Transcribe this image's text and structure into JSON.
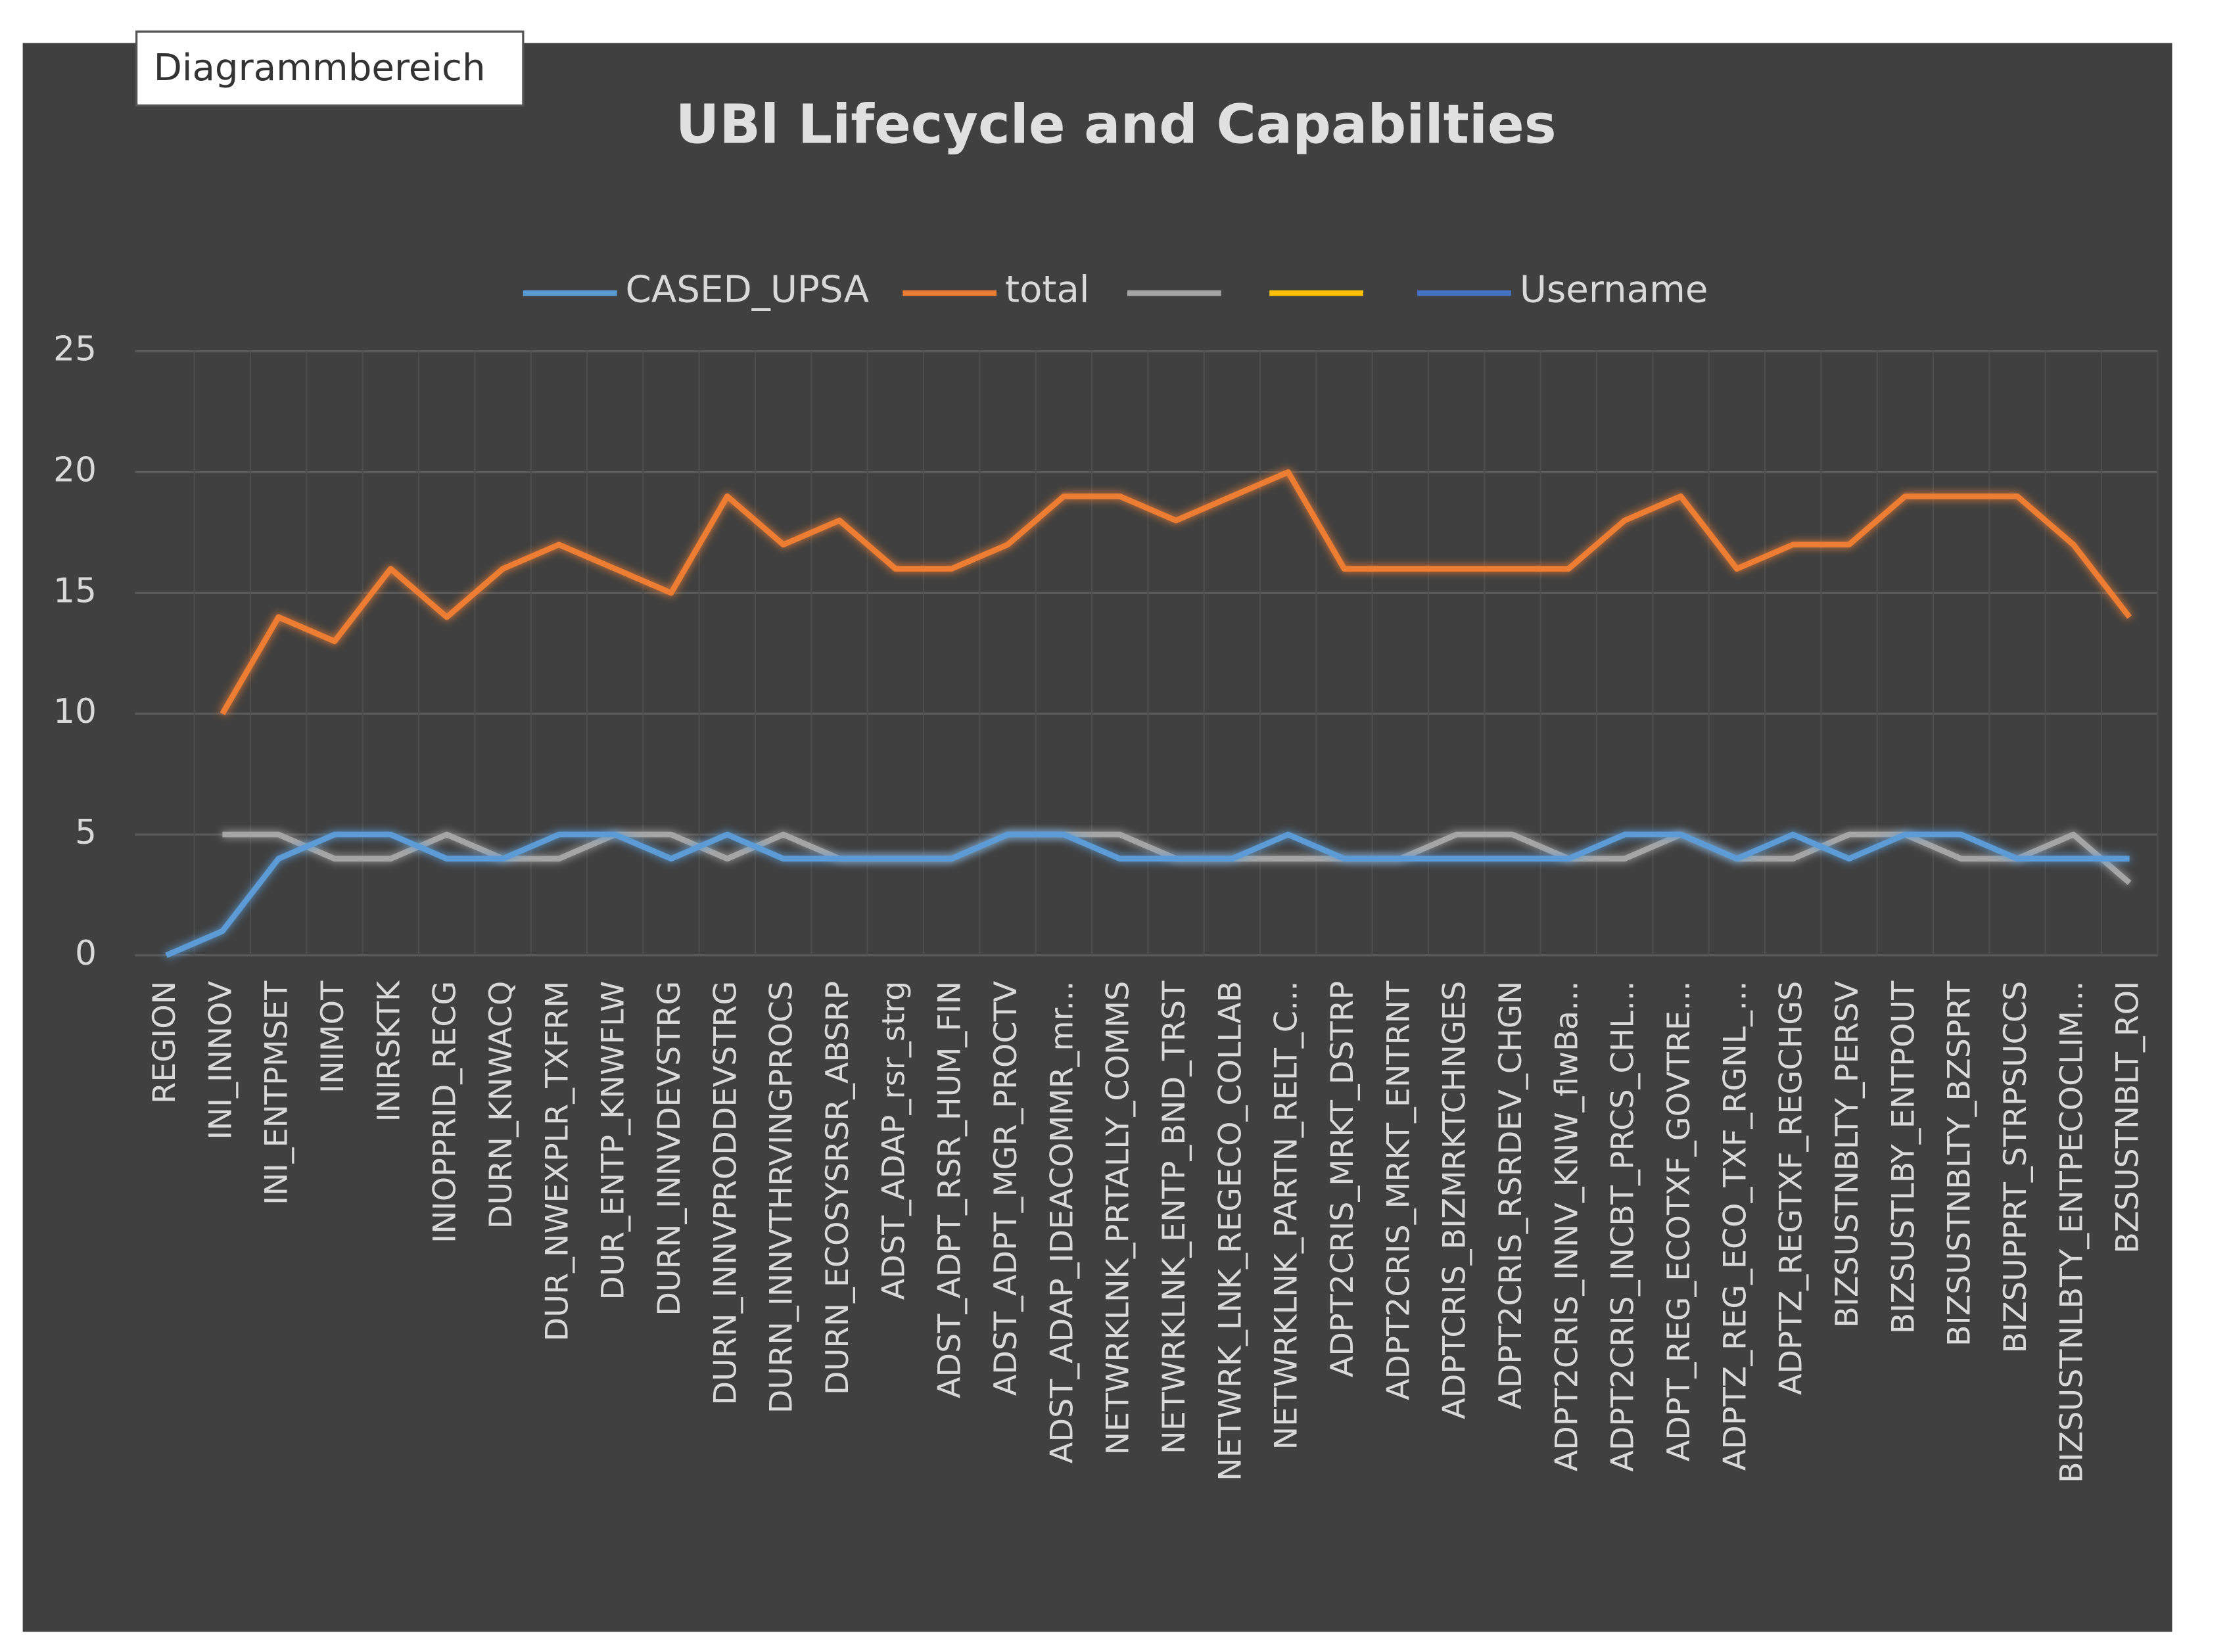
{
  "tooltip": "Diagrammbereich",
  "chart_data": {
    "type": "line",
    "title": "UBl Lifecycle and Capabilties",
    "categories": [
      "REGION",
      "INI_INNOV",
      "INI_ENTPMSET",
      "INIMOT",
      "INIRSKTK",
      "INIOPPRID_RECG",
      "DURN_KNWACQ",
      "DUR_NWEXPLR_TXFRM",
      "DUR_ENTP_KNWFLW",
      "DURN_INNVDEVSTRG",
      "DURN_INNVPRODDEVSTRG",
      "DURN_INNVTHRVINGPROCS",
      "DURN_ECOSYSRSR_ABSRP",
      "ADST_ADAP_rsr_strg",
      "ADST_ADPT_RSR_HUM_FIN",
      "ADST_ADPT_MGR_PROCTV",
      "ADST_ADAP_IDEACOMMR_mr...",
      "NETWRKLNK_PRTALLY_COMMS",
      "NETWRKLNK_ENTP_BND_TRST",
      "NETWRK_LNK_REGECO_COLLAB",
      "NETWRKLNK_PARTN_RELT_C...",
      "ADPT2CRIS_MRKT_DSTRP",
      "ADPT2CRIS_MRKT_ENTRNT",
      "ADPTCRIS_BIZMRKTCHNGES",
      "ADPT2CRIS_RSRDEV_CHGN",
      "ADPT2CRIS_INNV_KNW_flwBa...",
      "ADPT2CRIS_INCBT_PRCS_CHL...",
      "ADPT_REG_ECOTXF_GOVTRE...",
      "ADPTZ_REG_ECO_TXF_RGNL_...",
      "ADPTZ_REGTXF_REGCHGS",
      "BIZSUSTNBLTY_PERSV",
      "BIZSUSTLBY_ENTPOUT",
      "BIZSUSTNBLTY_BZSPRT",
      "BIZSUPPRT_STRPSUCCS",
      "BIZSUSTNLBTY_ENTPECOCLIM...",
      "BZSUSTNBLT_ROI"
    ],
    "series": [
      {
        "name": "CASED_UPSA",
        "color": "#5b9bd5",
        "values": [
          0,
          1,
          4,
          5,
          5,
          4,
          4,
          5,
          5,
          4,
          5,
          4,
          4,
          4,
          4,
          5,
          5,
          4,
          4,
          4,
          5,
          4,
          4,
          4,
          4,
          4,
          5,
          5,
          4,
          5,
          4,
          5,
          5,
          4,
          4,
          4
        ]
      },
      {
        "name": "total",
        "color": "#ed7d31",
        "values": [
          null,
          10,
          14,
          13,
          16,
          14,
          16,
          17,
          16,
          15,
          19,
          17,
          18,
          16,
          16,
          17,
          19,
          19,
          18,
          19,
          20,
          16,
          16,
          16,
          16,
          16,
          18,
          19,
          16,
          17,
          17,
          19,
          19,
          19,
          17,
          14
        ]
      },
      {
        "color": "#a5a5a5",
        "values": [
          null,
          5,
          5,
          4,
          4,
          5,
          4,
          4,
          5,
          5,
          4,
          5,
          4,
          4,
          4,
          5,
          5,
          5,
          4,
          4,
          4,
          4,
          4,
          5,
          5,
          4,
          4,
          5,
          4,
          4,
          5,
          5,
          4,
          4,
          5,
          3
        ]
      },
      {
        "color": "#ffc000",
        "values": [
          null,
          null,
          null,
          null,
          null,
          null,
          null,
          null,
          null,
          null,
          null,
          null,
          null,
          null,
          null,
          null,
          null,
          null,
          null,
          null,
          null,
          null,
          null,
          null,
          null,
          null,
          null,
          null,
          null,
          null,
          null,
          null,
          null,
          null,
          null,
          null
        ]
      },
      {
        "name": "Username",
        "color": "#4472c4",
        "values": [
          null,
          0,
          0,
          0,
          0,
          0,
          0,
          0,
          0,
          0,
          0,
          0,
          0,
          0,
          0,
          0,
          0,
          0,
          0,
          0,
          0,
          0,
          0,
          0,
          0,
          0,
          0,
          0,
          0,
          0,
          0,
          0,
          0,
          0,
          0,
          0
        ]
      }
    ],
    "ylim": [
      0,
      25
    ],
    "yticks": [
      0,
      5,
      10,
      15,
      20,
      25
    ],
    "grid": true,
    "legend": "top"
  }
}
